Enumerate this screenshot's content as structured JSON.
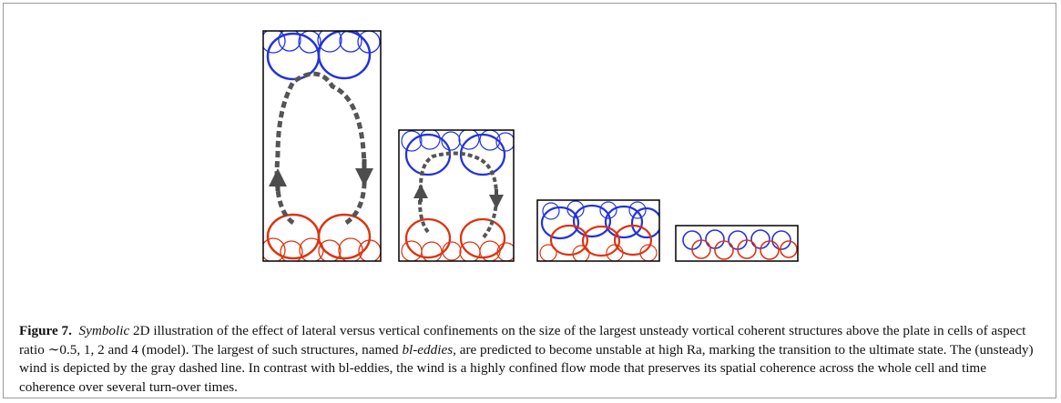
{
  "caption": {
    "label": "Figure 7.",
    "parts": [
      "Symbolic",
      "2D illustration of the effect of lateral versus vertical confinements on the size of the largest unsteady vortical coherent structures above the plate in cells of aspect ratio ∼0.5, 1, 2 and 4 (model). The largest of such structures, named",
      "bl-eddies",
      ", are predicted to become unstable at high Ra, marking the transition to the ultimate state. The (unsteady) wind is depicted by the gray dashed line. In contrast with bl-eddies, the wind is a highly confined flow mode that preserves its spatial coherence across the whole cell and time coherence over several turn-over times."
    ]
  }
}
